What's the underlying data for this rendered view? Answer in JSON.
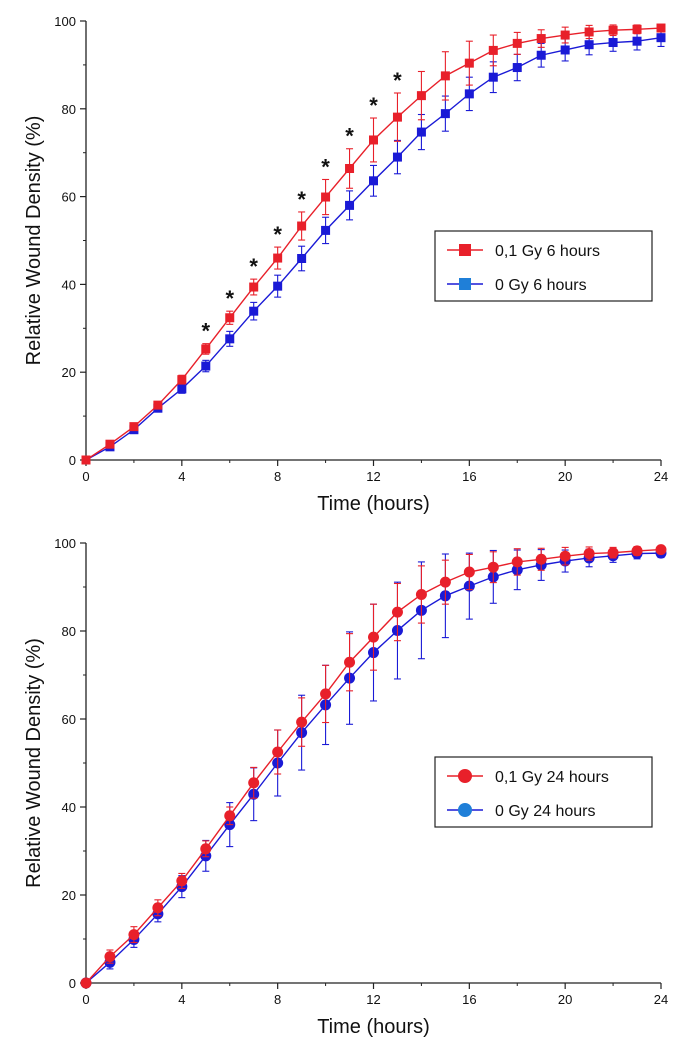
{
  "chart_data": [
    {
      "type": "line",
      "xlabel": "Time (hours)",
      "ylabel": "Relative Wound Density (%)",
      "xlim": [
        0,
        24
      ],
      "ylim": [
        0,
        100
      ],
      "x_ticks": [
        "0",
        "4",
        "8",
        "12",
        "16",
        "20",
        "24"
      ],
      "y_ticks": [
        "0",
        "20",
        "40",
        "60",
        "80",
        "100"
      ],
      "grid": false,
      "legend_position": "center-right",
      "marker": "square",
      "significance_marker": "*",
      "significant_x": [
        5,
        6,
        7,
        8,
        9,
        10,
        11,
        12,
        13
      ],
      "x": [
        0,
        1,
        2,
        3,
        4,
        5,
        6,
        7,
        8,
        9,
        10,
        11,
        12,
        13,
        14,
        15,
        16,
        17,
        18,
        19,
        20,
        21,
        22,
        23,
        24
      ],
      "series": [
        {
          "name": "0,1 Gy 6 hours",
          "color": "#e8202a",
          "values": [
            0,
            3.6,
            7.6,
            12.5,
            18.3,
            25.3,
            32.4,
            39.4,
            46,
            53.3,
            59.9,
            66.4,
            72.9,
            78.1,
            83,
            87.5,
            90.4,
            93.3,
            94.9,
            96,
            96.8,
            97.5,
            97.9,
            98.1,
            98.4
          ],
          "errors": [
            0,
            0.5,
            0.6,
            0.8,
            1,
            1.2,
            1.5,
            1.8,
            2.5,
            3.2,
            4,
            4.5,
            5,
            5.5,
            5.5,
            5.5,
            5,
            3.5,
            2.5,
            2,
            1.8,
            1.5,
            1.2,
            1,
            0.8
          ]
        },
        {
          "name": "0 Gy 6 hours",
          "color": "#1a1ad6",
          "values": [
            0,
            3,
            6.9,
            11.8,
            16.2,
            21.4,
            27.6,
            33.9,
            39.6,
            45.9,
            52.3,
            58,
            63.6,
            69,
            74.7,
            78.9,
            83.4,
            87.2,
            89.4,
            92.2,
            93.4,
            94.6,
            95.1,
            95.4,
            96.2
          ],
          "errors": [
            0,
            0.5,
            0.6,
            0.8,
            1,
            1.3,
            1.7,
            2,
            2.5,
            2.8,
            3,
            3.3,
            3.5,
            3.8,
            4,
            4,
            3.8,
            3.5,
            3,
            2.7,
            2.5,
            2.3,
            2,
            2,
            2
          ]
        }
      ]
    },
    {
      "type": "line",
      "xlabel": "Time (hours)",
      "ylabel": "Relative Wound Density (%)",
      "xlim": [
        0,
        24
      ],
      "ylim": [
        0,
        100
      ],
      "x_ticks": [
        "0",
        "4",
        "8",
        "12",
        "16",
        "20",
        "24"
      ],
      "y_ticks": [
        "0",
        "20",
        "40",
        "60",
        "80",
        "100"
      ],
      "grid": false,
      "legend_position": "lower-right",
      "marker": "circle",
      "x": [
        0,
        1,
        2,
        3,
        4,
        5,
        6,
        7,
        8,
        9,
        10,
        11,
        12,
        13,
        14,
        15,
        16,
        17,
        18,
        19,
        20,
        21,
        22,
        23,
        24
      ],
      "series": [
        {
          "name": "0,1 Gy 24 hours",
          "color": "#e8202a",
          "values": [
            0,
            6,
            11,
            17.1,
            23.2,
            30.5,
            38,
            45.5,
            52.5,
            59.3,
            65.7,
            72.9,
            78.6,
            84.3,
            88.3,
            91.1,
            93.4,
            94.5,
            95.7,
            96.3,
            97,
            97.6,
            97.8,
            98.2,
            98.5
          ],
          "errors": [
            0,
            1.5,
            1.8,
            1.8,
            1.7,
            1.8,
            2,
            3.5,
            5,
            5.5,
            6.5,
            6.5,
            7.5,
            6.5,
            6.5,
            5,
            4,
            3.5,
            3,
            2.5,
            2,
            1.5,
            1.2,
            1,
            0.8
          ]
        },
        {
          "name": "0 Gy 24 hours",
          "color": "#1a1ad6",
          "values": [
            0,
            4.7,
            9.9,
            15.7,
            21.9,
            28.9,
            36,
            42.9,
            50,
            56.9,
            63.2,
            69.3,
            75.1,
            80.1,
            84.7,
            88,
            90.2,
            92.3,
            93.9,
            95,
            95.9,
            96.6,
            97.1,
            97.6,
            97.7
          ],
          "errors": [
            0,
            1.5,
            1.8,
            1.8,
            2.5,
            3.5,
            5,
            6,
            7.5,
            8.5,
            9,
            10.5,
            11,
            11,
            11,
            9.5,
            7.5,
            6,
            4.5,
            3.5,
            2.5,
            2,
            1.5,
            1.2,
            1
          ]
        }
      ]
    }
  ]
}
